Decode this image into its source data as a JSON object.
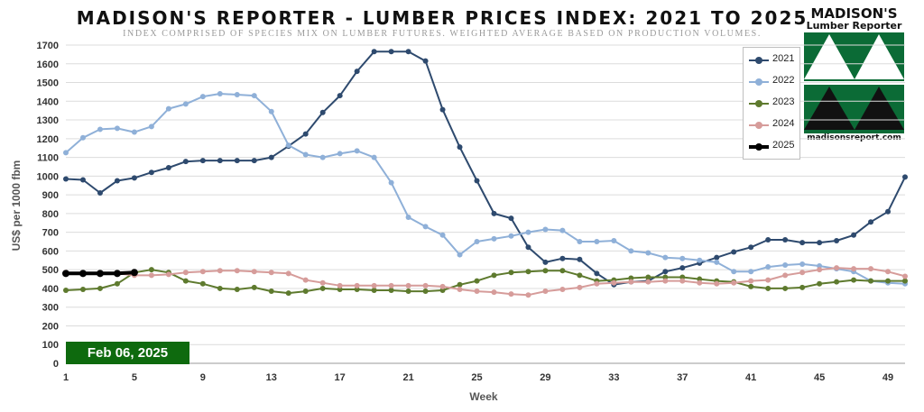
{
  "title": "MADISON'S REPORTER - LUMBER PRICES INDEX: 2021 TO 2025",
  "subtitle": "INDEX COMPRISED OF SPECIES MIX ON LUMBER FUTURES. WEIGHTED AVERAGE BASED ON PRODUCTION VOLUMES.",
  "logo": {
    "name": "MADISON'S",
    "subname": "Lumber Reporter",
    "url": "madisonsreport.com",
    "colors": {
      "green": "#0b6b36",
      "black": "#111111"
    }
  },
  "date_badge": "Feb 06, 2025",
  "chart_data": {
    "type": "line",
    "title": "MADISON'S REPORTER - LUMBER PRICES INDEX: 2021 TO 2025",
    "xlabel": "Week",
    "ylabel": "US$ per 1000 fbm",
    "xlim": [
      1,
      50
    ],
    "ylim": [
      0,
      1700
    ],
    "x_ticks": [
      1,
      5,
      9,
      13,
      17,
      21,
      25,
      29,
      33,
      37,
      41,
      45,
      49
    ],
    "y_ticks": [
      0,
      100,
      200,
      300,
      400,
      500,
      600,
      700,
      800,
      900,
      1000,
      1100,
      1200,
      1300,
      1400,
      1500,
      1600,
      1700
    ],
    "grid": "horizontal",
    "legend": "top-right",
    "series": [
      {
        "name": "2021",
        "color": "#2e4a6e",
        "values": [
          985,
          980,
          910,
          975,
          990,
          1020,
          1045,
          1078,
          1083,
          1083,
          1083,
          1083,
          1100,
          1160,
          1225,
          1340,
          1430,
          1560,
          1665,
          1665,
          1665,
          1615,
          1355,
          1155,
          975,
          800,
          775,
          620,
          540,
          560,
          555,
          480,
          420,
          435,
          440,
          490,
          510,
          535,
          565,
          595,
          620,
          660,
          660,
          645,
          645,
          655,
          685,
          755,
          810,
          995
        ]
      },
      {
        "name": "2022",
        "color": "#8fb0d8",
        "values": [
          1125,
          1205,
          1250,
          1255,
          1235,
          1265,
          1360,
          1385,
          1425,
          1440,
          1435,
          1430,
          1345,
          1165,
          1115,
          1100,
          1120,
          1135,
          1100,
          965,
          780,
          730,
          685,
          580,
          650,
          665,
          680,
          700,
          715,
          710,
          650,
          650,
          655,
          600,
          590,
          565,
          560,
          550,
          540,
          490,
          490,
          515,
          525,
          530,
          520,
          505,
          490,
          440,
          430,
          425
        ]
      },
      {
        "name": "2023",
        "color": "#5e7a2e",
        "values": [
          390,
          395,
          400,
          425,
          485,
          500,
          485,
          440,
          425,
          400,
          395,
          405,
          385,
          375,
          385,
          400,
          395,
          395,
          390,
          390,
          385,
          385,
          390,
          420,
          440,
          470,
          485,
          490,
          495,
          495,
          470,
          440,
          445,
          455,
          460,
          460,
          460,
          450,
          440,
          435,
          410,
          400,
          400,
          405,
          425,
          435,
          445,
          440,
          440,
          440
        ]
      },
      {
        "name": "2024",
        "color": "#d69c9a",
        "values": [
          485,
          480,
          480,
          480,
          470,
          470,
          475,
          485,
          490,
          495,
          495,
          490,
          485,
          480,
          445,
          430,
          415,
          415,
          415,
          415,
          415,
          415,
          410,
          395,
          385,
          380,
          370,
          365,
          385,
          395,
          405,
          425,
          430,
          435,
          435,
          440,
          440,
          430,
          425,
          430,
          440,
          445,
          470,
          485,
          500,
          510,
          505,
          505,
          490,
          465
        ]
      },
      {
        "name": "2025",
        "color": "#000000",
        "values": [
          480,
          480,
          480,
          480,
          485
        ]
      }
    ]
  }
}
